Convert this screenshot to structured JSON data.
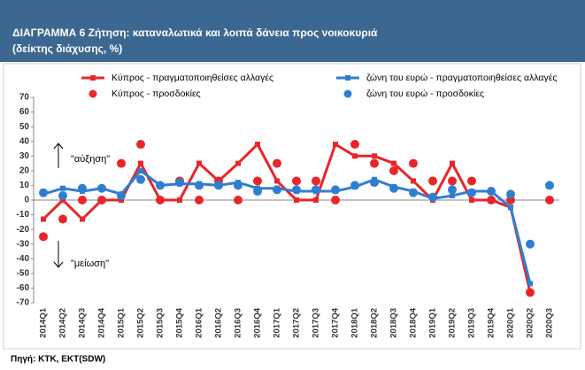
{
  "chart_data": {
    "type": "line",
    "title": "ΔΙΑΓΡΑΜΜΑ 6 Ζήτηση: καταναλωτικά και λοιπά δάνεια προς νοικοκυριά",
    "subtitle": "(δείκτης διάχυσης, %)",
    "source": "Πηγή: ΚΤΚ, ΕΚΤ(SDW)",
    "annotations": [
      "\"αύξηση\"",
      "\"μείωση\""
    ],
    "categories": [
      "2014Q1",
      "2014Q2",
      "2014Q3",
      "2014Q4",
      "2015Q1",
      "2015Q2",
      "2015Q3",
      "2015Q4",
      "2016Q1",
      "2016Q2",
      "2016Q3",
      "2016Q4",
      "2017Q1",
      "2017Q2",
      "2017Q3",
      "2017Q4",
      "2018Q1",
      "2018Q2",
      "2018Q3",
      "2018Q4",
      "2019Q1",
      "2019Q2",
      "2019Q3",
      "2019Q4",
      "2020Q1",
      "2020Q2",
      "2020Q3"
    ],
    "ylim": [
      -70,
      70
    ],
    "yticks": [
      -70,
      -60,
      -50,
      -40,
      -30,
      -20,
      -10,
      0,
      10,
      20,
      30,
      40,
      50,
      60,
      70
    ],
    "grid": false,
    "series": [
      {
        "name": "Κύπρος - πραγματοποιηθείσες αλλαγές",
        "color": "#e8262a",
        "style": "line",
        "values": [
          -13,
          0,
          -13,
          0,
          0,
          25,
          0,
          0,
          25,
          13,
          25,
          38,
          13,
          0,
          0,
          38,
          30,
          30,
          25,
          13,
          0,
          25,
          0,
          0,
          -5,
          -63,
          null
        ]
      },
      {
        "name": "ζώνη του ευρώ - πραγματοποιηθείσες αλλαγές",
        "color": "#2f7fd0",
        "style": "line",
        "values": [
          4,
          8,
          6,
          8,
          4,
          20,
          10,
          11,
          11,
          10,
          12,
          8,
          8,
          6,
          6,
          6,
          9,
          14,
          9,
          6,
          1,
          3,
          6,
          6,
          -5,
          -57,
          null
        ]
      },
      {
        "name": "Κύπρος - προσδοκίες",
        "color": "#e8262a",
        "style": "dots",
        "values": [
          -25,
          -13,
          0,
          0,
          25,
          38,
          0,
          13,
          0,
          13,
          0,
          13,
          25,
          13,
          13,
          0,
          38,
          25,
          20,
          25,
          13,
          13,
          13,
          0,
          0,
          -63,
          0
        ]
      },
      {
        "name": "ζώνη του ευρώ - προσδοκίες",
        "color": "#2f7fd0",
        "style": "dots",
        "values": [
          5,
          3,
          8,
          8,
          3,
          14,
          10,
          12,
          10,
          10,
          10,
          6,
          7,
          7,
          7,
          7,
          10,
          12,
          8,
          5,
          2,
          7,
          5,
          6,
          4,
          -30,
          10
        ]
      }
    ]
  }
}
